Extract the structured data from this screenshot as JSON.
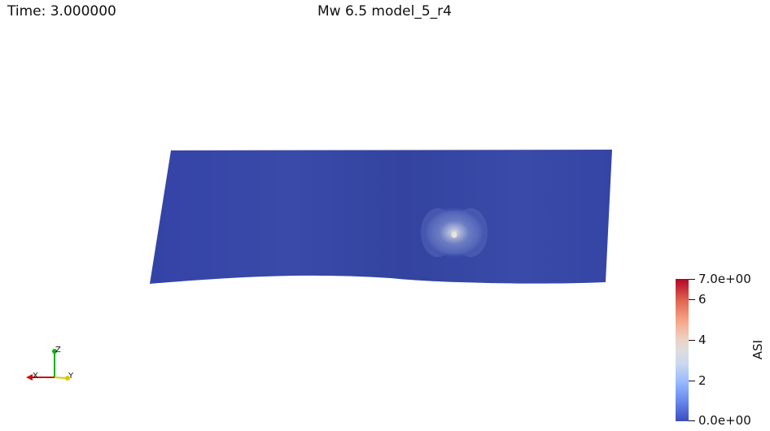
{
  "header": {
    "time": "Time: 3.000000",
    "title": "Mw 6.5 model_5_r4"
  },
  "colorbar": {
    "title": "ASI",
    "max_label": "7.0e+00",
    "min_label": "0.0e+00",
    "ticks": [
      "6",
      "4",
      "2"
    ],
    "range": [
      0,
      7
    ]
  },
  "axes_gizmo": {
    "z_label": "Z",
    "x_label": "X",
    "y_label": "Y"
  },
  "colors": {
    "surface": "#3848a4",
    "hotspot": "#d9dbd6",
    "x_axis": "#cc1010",
    "y_axis": "#d8c800",
    "z_axis": "#10b010"
  }
}
